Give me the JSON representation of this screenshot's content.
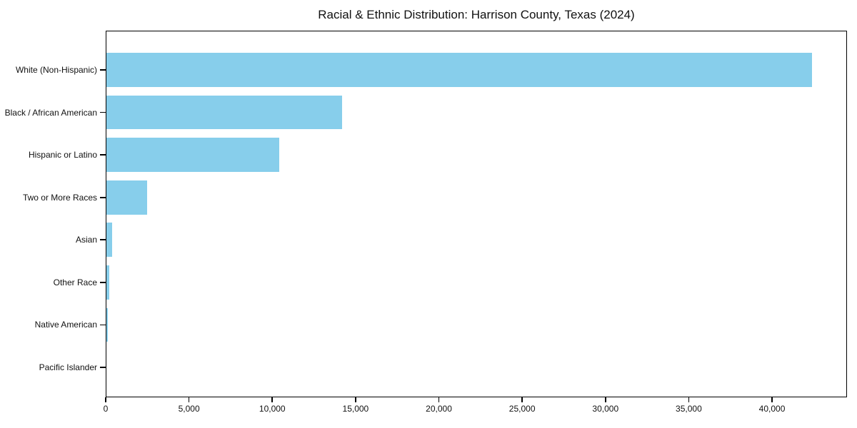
{
  "figure": {
    "background_color": "#FFFFFF"
  },
  "chart_data": {
    "type": "bar",
    "orientation": "horizontal",
    "title": "Racial & Ethnic Distribution: Harrison County, Texas (2024)",
    "categories": [
      "White (Non-Hispanic)",
      "Black / African American",
      "Hispanic or Latino",
      "Two or More Races",
      "Asian",
      "Other Race",
      "Native American",
      "Pacific Islander"
    ],
    "values": [
      42400,
      14200,
      10400,
      2500,
      400,
      200,
      130,
      25
    ],
    "xlabel": "",
    "ylabel": "",
    "xlim": [
      0,
      44500
    ],
    "xticks": [
      0,
      5000,
      10000,
      15000,
      20000,
      25000,
      30000,
      35000,
      40000
    ],
    "xtick_labels": [
      "0",
      "5,000",
      "10,000",
      "15,000",
      "20,000",
      "25,000",
      "30,000",
      "35,000",
      "40,000"
    ],
    "bar_color": "#87CEEB",
    "axis_color": "#000000",
    "text_color": "#111111",
    "grid": false,
    "legend": false
  }
}
